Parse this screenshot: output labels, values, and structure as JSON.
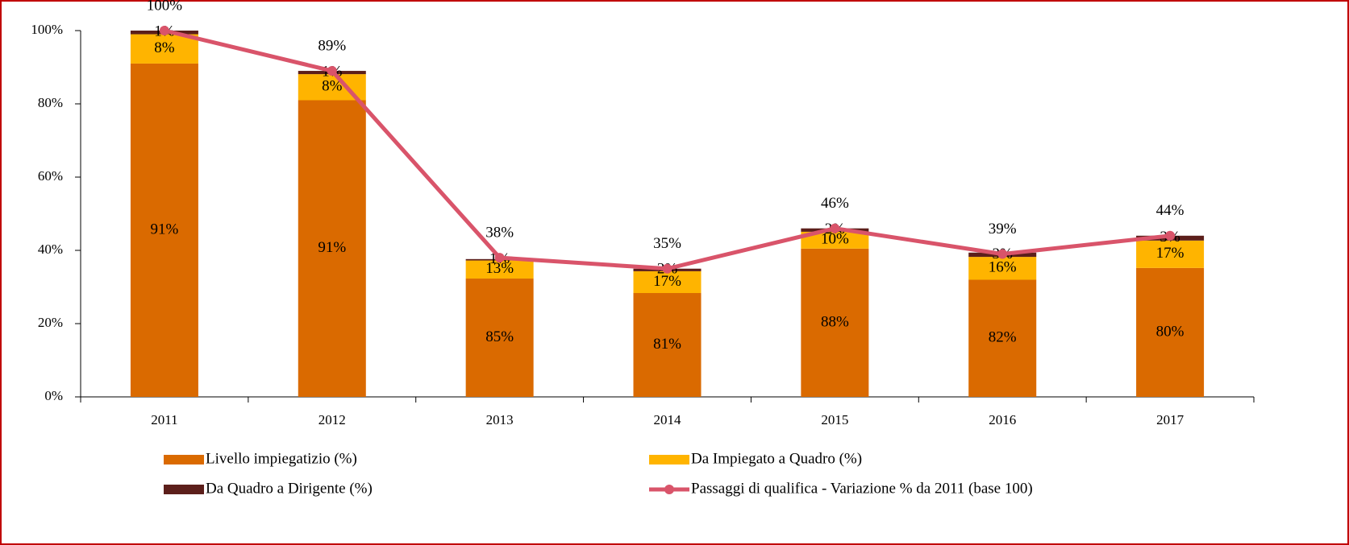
{
  "chart_data": {
    "type": "bar",
    "categories": [
      "2011",
      "2012",
      "2013",
      "2014",
      "2015",
      "2016",
      "2017"
    ],
    "ylim": [
      0,
      100
    ],
    "yticks": [
      {
        "value": 0,
        "label": "0%"
      },
      {
        "value": 20,
        "label": "20%"
      },
      {
        "value": 40,
        "label": "40%"
      },
      {
        "value": 60,
        "label": "60%"
      },
      {
        "value": 80,
        "label": "80%"
      },
      {
        "value": 100,
        "label": "100%"
      }
    ],
    "series": [
      {
        "name": "Livello impiegatizio (%)",
        "type": "bar",
        "color": "#da6a00",
        "values": [
          91,
          91,
          85,
          81,
          88,
          82,
          80
        ],
        "value_labels": [
          "91%",
          "91%",
          "85%",
          "81%",
          "88%",
          "82%",
          "80%"
        ]
      },
      {
        "name": "Da Impiegato a Quadro (%)",
        "type": "bar",
        "color": "#ffb400",
        "values": [
          8,
          8,
          13,
          17,
          10,
          16,
          17
        ],
        "value_labels": [
          "8%",
          "8%",
          "13%",
          "17%",
          "10%",
          "16%",
          "17%"
        ]
      },
      {
        "name": "Da Quadro a Dirigente (%)",
        "type": "bar",
        "color": "#5c1f1b",
        "values": [
          1,
          1,
          1,
          2,
          2,
          3,
          3
        ],
        "value_labels": [
          "1%",
          "1%",
          "1%",
          "2%",
          "2%",
          "3%",
          "3%"
        ]
      },
      {
        "name": "Passaggi di qualifica - Variazione % da 2011 (base 100)",
        "type": "line",
        "color": "#d9546a",
        "values": [
          100,
          89,
          38,
          35,
          46,
          39,
          44
        ],
        "value_labels": [
          "100%",
          "89%",
          "38%",
          "35%",
          "46%",
          "39%",
          "44%"
        ]
      }
    ]
  }
}
